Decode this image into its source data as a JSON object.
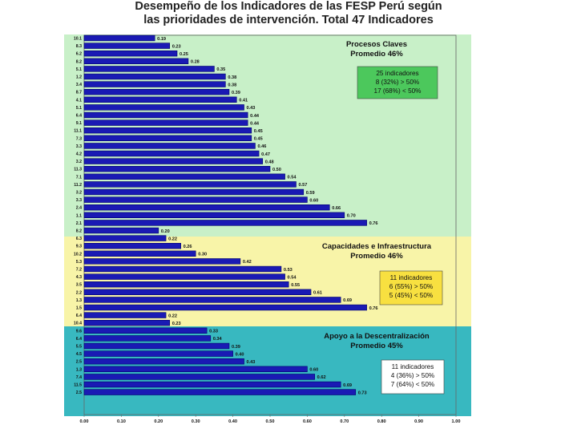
{
  "title": {
    "line1": "Desempeño de los Indicadores de las FESP Perú según",
    "line2": "las prioridades de intervención.  Total 47 Indicadores"
  },
  "colors": {
    "group1_bg": "#c8f0c8",
    "group2_bg": "#f8f4a8",
    "group3_bg": "#38b8c0",
    "note1_bg": "#4cc85c",
    "note2_bg": "#f8e040",
    "note3_bg": "#ffffff",
    "bar": "#1a1ab4",
    "bar_edge": "#00006e"
  },
  "chart_data": {
    "type": "bar",
    "orientation": "horizontal",
    "xlim": [
      0,
      1
    ],
    "xticks": [
      "0.00",
      "0.10",
      "0.20",
      "0.30",
      "0.40",
      "0.50",
      "0.60",
      "0.70",
      "0.80",
      "0.90",
      "1.00"
    ],
    "groups": [
      {
        "title_line1": "Procesos Claves",
        "title_line2": "Promedio  46%",
        "note": [
          "25 indicadores",
          "8 (32%) > 50%",
          "17 (68%) < 50%"
        ],
        "categories": [
          "10.1",
          "8.3",
          "6.2",
          "8.2",
          "5.1",
          "1.2",
          "3.4",
          "8.7",
          "4.1",
          "5.1",
          "6.4",
          "9.1",
          "11.1",
          "7.3",
          "3.3",
          "4.2",
          "3.2",
          "11.3",
          "7.1",
          "11.2",
          "3.2",
          "3.3",
          "2.4",
          "1.1",
          "2.1"
        ],
        "values": [
          0.19,
          0.23,
          0.25,
          0.28,
          0.35,
          0.38,
          0.38,
          0.39,
          0.41,
          0.43,
          0.44,
          0.44,
          0.45,
          0.45,
          0.46,
          0.47,
          0.48,
          0.5,
          0.54,
          0.57,
          0.59,
          0.6,
          0.66,
          0.7,
          0.76
        ],
        "labels": [
          "0.19",
          "0.23",
          "0.25",
          "0.28",
          "0.35",
          "0.38",
          "0.38",
          "0.39",
          "0.41",
          "0.43",
          "0.44",
          "0.44",
          "0.45",
          "0.45",
          "0.46",
          "0.47",
          "0.48",
          "0.50",
          "0.54",
          "0.57",
          "0.59",
          "0.60",
          "0.66",
          "0.70",
          "0.76"
        ]
      },
      {
        "title_line1": "Capacidades e Infraestructura",
        "title_line2": "Promedio  46%",
        "note": [
          "11 indicadores",
          "6 (55%) > 50%",
          "5 (45%) < 50%"
        ],
        "categories": [
          "8.2",
          "6.3",
          "9.3",
          "10.2",
          "5.3",
          "7.2",
          "4.3",
          "3.5",
          "2.2",
          "1.3",
          "1.5"
        ],
        "values": [
          0.2,
          0.22,
          0.26,
          0.3,
          0.42,
          0.53,
          0.54,
          0.55,
          0.61,
          0.69,
          0.76
        ],
        "labels": [
          "0.20",
          "0.22",
          "0.26",
          "0.30",
          "0.42",
          "0.53",
          "0.54",
          "0.55",
          "0.61",
          "0.69",
          "0.76"
        ]
      },
      {
        "title_line1": "Apoyo a la Descentralización",
        "title_line2": "Promedio 45%",
        "note": [
          "11 indicadores",
          "4 (36%) > 50%",
          "7 (64%) < 50%"
        ],
        "categories": [
          "6.4",
          "10.4",
          "9.6",
          "6.4",
          "5.5",
          "4.5",
          "2.5",
          "1.3",
          "7.4",
          "11.5",
          "2.5"
        ],
        "values": [
          0.22,
          0.23,
          0.33,
          0.34,
          0.39,
          0.4,
          0.43,
          0.6,
          0.62,
          0.69,
          0.73
        ],
        "labels": [
          "0.22",
          "0.23",
          "0.33",
          "0.34",
          "0.39",
          "0.40",
          "0.43",
          "0.60",
          "0.62",
          "0.69",
          "0.73"
        ]
      }
    ]
  }
}
